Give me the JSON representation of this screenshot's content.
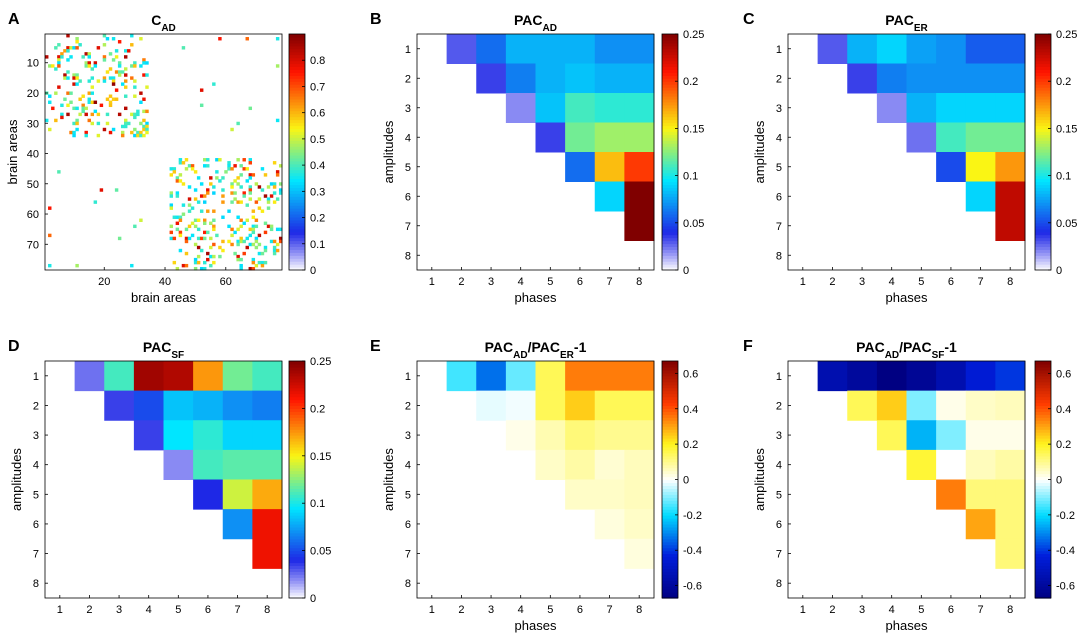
{
  "figure": {
    "background": "#ffffff"
  },
  "chart_data": [
    {
      "panel": "A",
      "type": "heatmap",
      "title": "C",
      "title_sub": "AD",
      "xlabel": "brain areas",
      "ylabel": "brain areas",
      "xticks": [
        "20",
        "40",
        "60"
      ],
      "yticks": [
        "10",
        "20",
        "30",
        "40",
        "50",
        "60",
        "70"
      ],
      "n_areas": 78,
      "blocks": [
        [
          1,
          34
        ],
        [
          42,
          78
        ]
      ],
      "colorbar": {
        "min": 0,
        "max": 0.9,
        "colormap": "jet_white",
        "ticks": [
          "0",
          "0.1",
          "0.2",
          "0.3",
          "0.4",
          "0.5",
          "0.6",
          "0.7",
          "0.8"
        ]
      }
    },
    {
      "panel": "B",
      "type": "heatmap",
      "title": "PAC",
      "title_sub": "AD",
      "xlabel": "phases",
      "ylabel": "amplitudes",
      "xticks": [
        "1",
        "2",
        "3",
        "4",
        "5",
        "6",
        "7",
        "8"
      ],
      "yticks": [
        "1",
        "2",
        "3",
        "4",
        "5",
        "6",
        "7",
        "8"
      ],
      "colorbar": {
        "min": 0,
        "max": 0.25,
        "colormap": "jet_white",
        "ticks": [
          "0",
          "0.05",
          "0.1",
          "0.15",
          "0.2",
          "0.25"
        ]
      },
      "values": [
        [
          null,
          0.03,
          0.06,
          0.08,
          0.08,
          0.08,
          0.07,
          0.07
        ],
        [
          null,
          null,
          0.035,
          0.065,
          0.08,
          0.085,
          0.08,
          0.08
        ],
        [
          null,
          null,
          null,
          0.02,
          0.085,
          0.11,
          0.105,
          0.105
        ],
        [
          null,
          null,
          null,
          null,
          0.035,
          0.12,
          0.13,
          0.13
        ],
        [
          null,
          null,
          null,
          null,
          null,
          0.06,
          0.165,
          0.2
        ],
        [
          null,
          null,
          null,
          null,
          null,
          null,
          0.09,
          0.25
        ],
        [
          null,
          null,
          null,
          null,
          null,
          null,
          null,
          0.25
        ]
      ]
    },
    {
      "panel": "C",
      "type": "heatmap",
      "title": "PAC",
      "title_sub": "ER",
      "xlabel": "phases",
      "ylabel": "amplitudes",
      "xticks": [
        "1",
        "2",
        "3",
        "4",
        "5",
        "6",
        "7",
        "8"
      ],
      "yticks": [
        "1",
        "2",
        "3",
        "4",
        "5",
        "6",
        "7",
        "8"
      ],
      "colorbar": {
        "min": 0,
        "max": 0.25,
        "colormap": "jet_white",
        "ticks": [
          "0",
          "0.05",
          "0.1",
          "0.15",
          "0.2",
          "0.25"
        ]
      },
      "values": [
        [
          null,
          0.03,
          0.08,
          0.09,
          0.075,
          0.07,
          0.055,
          0.055
        ],
        [
          null,
          null,
          0.035,
          0.065,
          0.07,
          0.07,
          0.07,
          0.07
        ],
        [
          null,
          null,
          null,
          0.02,
          0.08,
          0.09,
          0.09,
          0.09
        ],
        [
          null,
          null,
          null,
          null,
          0.025,
          0.11,
          0.12,
          0.12
        ],
        [
          null,
          null,
          null,
          null,
          null,
          0.05,
          0.15,
          0.175
        ],
        [
          null,
          null,
          null,
          null,
          null,
          null,
          0.09,
          0.23
        ],
        [
          null,
          null,
          null,
          null,
          null,
          null,
          null,
          0.23
        ]
      ]
    },
    {
      "panel": "D",
      "type": "heatmap",
      "title": "PAC",
      "title_sub": "SF",
      "xlabel": "",
      "ylabel": "amplitudes",
      "xticks": [
        "1",
        "2",
        "3",
        "4",
        "5",
        "6",
        "7",
        "8"
      ],
      "yticks": [
        "1",
        "2",
        "3",
        "4",
        "5",
        "6",
        "7",
        "8"
      ],
      "colorbar": {
        "min": 0,
        "max": 0.25,
        "colormap": "jet_white",
        "ticks": [
          "0",
          "0.05",
          "0.1",
          "0.15",
          "0.2",
          "0.25"
        ]
      },
      "values": [
        [
          null,
          0.025,
          0.11,
          0.24,
          0.235,
          0.175,
          0.12,
          0.11
        ],
        [
          null,
          null,
          0.035,
          0.05,
          0.085,
          0.08,
          0.07,
          0.065
        ],
        [
          null,
          null,
          null,
          0.035,
          0.095,
          0.105,
          0.09,
          0.09
        ],
        [
          null,
          null,
          null,
          null,
          0.02,
          0.11,
          0.115,
          0.115
        ],
        [
          null,
          null,
          null,
          null,
          null,
          0.04,
          0.14,
          0.17
        ],
        [
          null,
          null,
          null,
          null,
          null,
          null,
          0.07,
          0.215
        ],
        [
          null,
          null,
          null,
          null,
          null,
          null,
          null,
          0.215
        ]
      ]
    },
    {
      "panel": "E",
      "type": "heatmap",
      "title": "PAC",
      "title_sub": "AD",
      "title_mid": "/PAC",
      "title_sub2": "ER",
      "title_end": "-1",
      "xlabel": "phases",
      "ylabel": "amplitudes",
      "xticks": [
        "1",
        "2",
        "3",
        "4",
        "5",
        "6",
        "7",
        "8"
      ],
      "yticks": [
        "1",
        "2",
        "3",
        "4",
        "5",
        "6",
        "7",
        "8"
      ],
      "colorbar": {
        "min": -0.67,
        "max": 0.67,
        "colormap": "jet_white_center",
        "ticks": [
          "-0.6",
          "-0.4",
          "-0.2",
          "0",
          "0.2",
          "0.4",
          "0.6"
        ]
      },
      "values": [
        [
          null,
          -0.15,
          -0.33,
          -0.12,
          0.15,
          0.35,
          0.35,
          0.35
        ],
        [
          null,
          null,
          -0.02,
          -0.01,
          0.15,
          0.25,
          0.15,
          0.15
        ],
        [
          null,
          null,
          null,
          0.02,
          0.07,
          0.12,
          0.1,
          0.1
        ],
        [
          null,
          null,
          null,
          null,
          0.05,
          0.08,
          0.04,
          0.06
        ],
        [
          null,
          null,
          null,
          null,
          null,
          0.05,
          0.05,
          0.06
        ],
        [
          null,
          null,
          null,
          null,
          null,
          null,
          0.03,
          0.05
        ],
        [
          null,
          null,
          null,
          null,
          null,
          null,
          null,
          0.03
        ]
      ]
    },
    {
      "panel": "F",
      "type": "heatmap",
      "title": "PAC",
      "title_sub": "AD",
      "title_mid": "/PAC",
      "title_sub2": "SF",
      "title_end": "-1",
      "xlabel": "phases",
      "ylabel": "amplitudes",
      "xticks": [
        "1",
        "2",
        "3",
        "4",
        "5",
        "6",
        "7",
        "8"
      ],
      "yticks": [
        "1",
        "2",
        "3",
        "4",
        "5",
        "6",
        "7",
        "8"
      ],
      "colorbar": {
        "min": -0.67,
        "max": 0.67,
        "colormap": "jet_white_center",
        "ticks": [
          "-0.6",
          "-0.4",
          "-0.2",
          "0",
          "0.2",
          "0.4",
          "0.6"
        ]
      },
      "values": [
        [
          null,
          -0.55,
          -0.6,
          -0.67,
          -0.62,
          -0.55,
          -0.45,
          -0.4
        ],
        [
          null,
          null,
          0.15,
          0.25,
          -0.1,
          0.02,
          0.05,
          0.06
        ],
        [
          null,
          null,
          null,
          0.15,
          -0.25,
          -0.1,
          0.02,
          0.02
        ],
        [
          null,
          null,
          null,
          null,
          0.18,
          0.0,
          0.06,
          0.08
        ],
        [
          null,
          null,
          null,
          null,
          null,
          0.35,
          0.12,
          0.12
        ],
        [
          null,
          null,
          null,
          null,
          null,
          null,
          0.3,
          0.12
        ],
        [
          null,
          null,
          null,
          null,
          null,
          null,
          null,
          0.12
        ]
      ]
    }
  ]
}
